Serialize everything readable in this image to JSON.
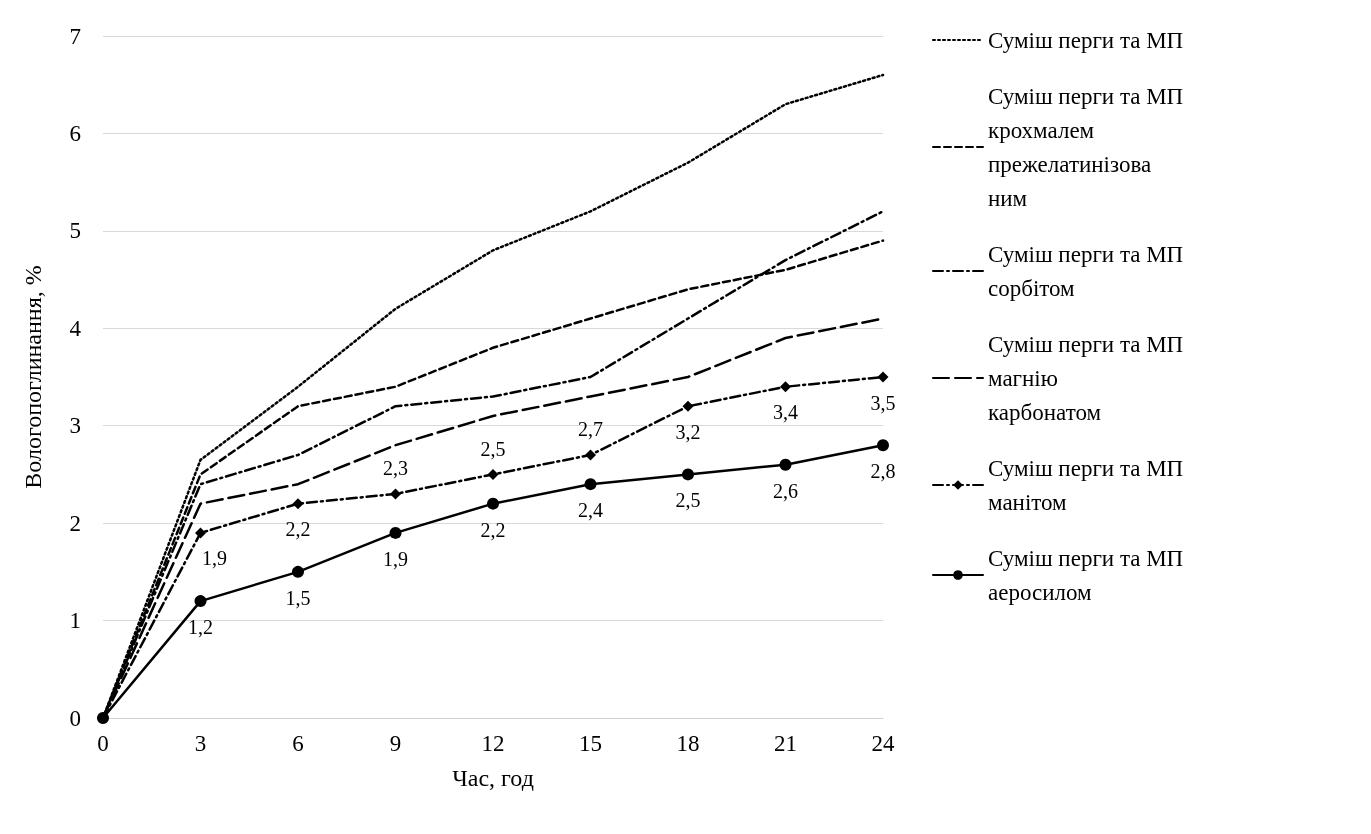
{
  "chart_data": {
    "type": "line",
    "xlabel": "Час, год",
    "ylabel": "Вологопоглинання, %",
    "categories": [
      "0",
      "3",
      "6",
      "9",
      "12",
      "15",
      "18",
      "21",
      "24"
    ],
    "ylim": [
      0,
      7
    ],
    "yticks": [
      0,
      1,
      2,
      3,
      4,
      5,
      6,
      7
    ],
    "grid": "y",
    "legend": "right",
    "series": [
      {
        "name": "Суміш перги та МП",
        "color": "#000000",
        "line_style": "dotted",
        "marker": "none",
        "values": [
          0,
          2.65,
          3.4,
          4.2,
          4.8,
          5.2,
          5.7,
          6.3,
          6.6
        ]
      },
      {
        "name": "Суміш перги та МП крохмалем прежелатинізованим",
        "color": "#000000",
        "line_style": "dashed",
        "marker": "none",
        "values": [
          0,
          2.5,
          3.2,
          3.4,
          3.8,
          4.1,
          4.4,
          4.6,
          4.9
        ]
      },
      {
        "name": "Суміш перги та МП сорбітом",
        "color": "#000000",
        "line_style": "dashdot",
        "marker": "none",
        "values": [
          0,
          2.4,
          2.7,
          3.2,
          3.3,
          3.5,
          4.1,
          4.7,
          5.2
        ]
      },
      {
        "name": "Суміш перги та МП магнію карбонатом",
        "color": "#000000",
        "line_style": "longdash",
        "marker": "none",
        "values": [
          0,
          2.2,
          2.4,
          2.8,
          3.1,
          3.3,
          3.5,
          3.9,
          4.1
        ]
      },
      {
        "name": "Суміш перги та МП манітом",
        "color": "#000000",
        "line_style": "dashdot",
        "marker": "diamond",
        "values": [
          0,
          1.9,
          2.2,
          2.3,
          2.5,
          2.7,
          3.2,
          3.4,
          3.5
        ],
        "value_labels": [
          null,
          "1,9",
          "2,2",
          "2,3",
          "2,5",
          "2,7",
          "3,2",
          "3,4",
          "3,5"
        ]
      },
      {
        "name": "Суміш перги та МП аеросилом",
        "color": "#000000",
        "line_style": "solid",
        "marker": "circle",
        "values": [
          0,
          1.2,
          1.5,
          1.9,
          2.2,
          2.4,
          2.5,
          2.6,
          2.8
        ],
        "value_labels": [
          null,
          "1,2",
          "1,5",
          "1,9",
          "2,2",
          "2,4",
          "2,5",
          "2,6",
          "2,8"
        ]
      }
    ]
  }
}
